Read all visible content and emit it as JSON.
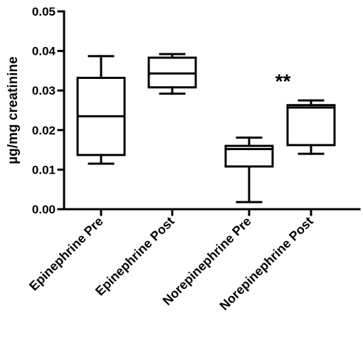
{
  "chart_data": {
    "type": "box",
    "ylabel": "µg/mg creatinine",
    "ylim": [
      0,
      0.05
    ],
    "yticks": [
      {
        "value": 0,
        "label": "0.00"
      },
      {
        "value": 0.01,
        "label": "0.01"
      },
      {
        "value": 0.02,
        "label": "0.02"
      },
      {
        "value": 0.03,
        "label": "0.03"
      },
      {
        "value": 0.04,
        "label": "0.04"
      },
      {
        "value": 0.05,
        "label": "0.05"
      }
    ],
    "categories": [
      "Epinephrine Pre",
      "Epinephrine Post",
      "Norepinephrine Pre",
      "Norepinephrine Post"
    ],
    "boxes": [
      {
        "min": 0.0115,
        "q1": 0.0137,
        "median": 0.0235,
        "q3": 0.0332,
        "max": 0.0387
      },
      {
        "min": 0.0292,
        "q1": 0.0308,
        "median": 0.0343,
        "q3": 0.0383,
        "max": 0.0392
      },
      {
        "min": 0.0018,
        "q1": 0.0108,
        "median": 0.0152,
        "q3": 0.016,
        "max": 0.0181
      },
      {
        "min": 0.014,
        "q1": 0.0162,
        "median": 0.0257,
        "q3": 0.0263,
        "max": 0.0275
      }
    ],
    "annotations": [
      {
        "text": "**",
        "category_index": 2.5,
        "y": 0.0325
      }
    ],
    "grid": false,
    "legend": "none"
  }
}
